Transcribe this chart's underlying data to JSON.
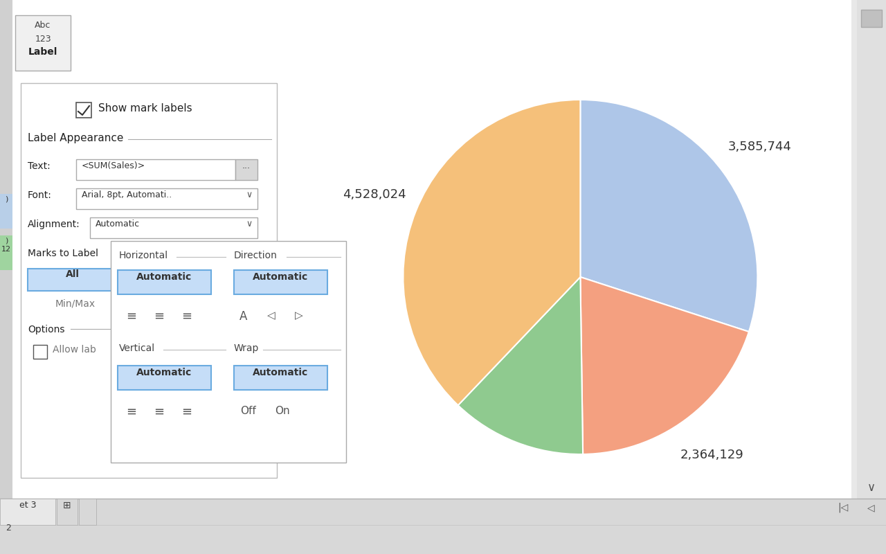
{
  "fig_w": 12.8,
  "fig_h": 8.0,
  "bg_white": "#ffffff",
  "bg_light_gray": "#e8e8e8",
  "bg_mid_gray": "#d0d0d0",
  "bg_dark_gray": "#c0c0c0",
  "panel_border": "#bbbbbb",
  "btn_fill": "#c5ddf7",
  "btn_border": "#6aabe0",
  "input_border": "#aaaaaa",
  "text_dark": "#222222",
  "text_mid": "#555555",
  "text_light": "#777777",
  "pie_values": [
    3585744,
    2364129,
    1477000,
    4528024
  ],
  "pie_colors": [
    "#aec6e8",
    "#f4a080",
    "#8fca8f",
    "#f5c07a"
  ],
  "pie_labels": [
    "3,585,744",
    "2,364,129",
    "",
    "4,528,024"
  ],
  "pie_label_r": 1.25,
  "checkbox_text": "Show mark labels",
  "label_appearance": "Label Appearance",
  "text_field": "<SUM(Sales)>",
  "font_field": "Arial, 8pt, Automati..",
  "align_field": "Automatic",
  "marks_label": "Marks to Label",
  "options_label": "Options",
  "allow_text": "Allow lab",
  "min_max_text": "Min/Max",
  "horiz_label": "Horizontal",
  "direction_label": "Direction",
  "vertical_label": "Vertical",
  "wrap_label": "Wrap",
  "off_text": "Off",
  "on_text": "On",
  "auto_text": "Automatic",
  "all_text": "All",
  "label_abc": "Abc",
  "label_123": "123",
  "label_label": "Label",
  "sheet_text": "et 3",
  "num_text": "2"
}
